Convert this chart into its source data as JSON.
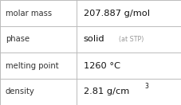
{
  "rows": [
    {
      "label": "molar mass",
      "value": "207.887 g/mol",
      "superscript": null,
      "small_text": null
    },
    {
      "label": "phase",
      "value": "solid",
      "superscript": null,
      "small_text": "(at STP)"
    },
    {
      "label": "melting point",
      "value": "1260 °C",
      "superscript": null,
      "small_text": null
    },
    {
      "label": "density",
      "value": "2.81 g/cm",
      "superscript": "3",
      "small_text": null
    }
  ],
  "col_split": 0.42,
  "background_color": "#ffffff",
  "border_color": "#bbbbbb",
  "label_color": "#333333",
  "value_color": "#111111",
  "small_text_color": "#999999",
  "font_size_label": 7.2,
  "font_size_value": 8.2,
  "font_size_small": 5.8,
  "font_size_super": 5.5
}
